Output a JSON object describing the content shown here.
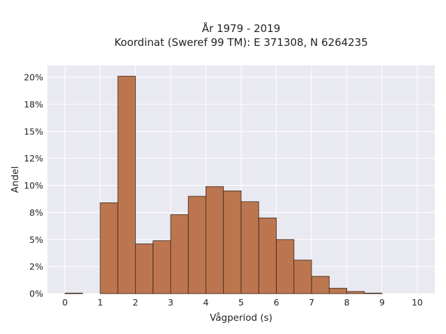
{
  "chart_data": {
    "type": "bar",
    "title": [
      "År 1979 - 2019",
      "Koordinat (Sweref 99 TM): E 371308, N 6264235"
    ],
    "xlabel": "Vågperiod (s)",
    "ylabel": "Andel",
    "bin_width": 0.5,
    "bin_starts": [
      0,
      0.5,
      1,
      1.5,
      2,
      2.5,
      3,
      3.5,
      4,
      4.5,
      5,
      5.5,
      6,
      6.5,
      7,
      7.5,
      8,
      8.5,
      9,
      9.5
    ],
    "values": [
      0.05,
      0,
      8.4,
      20.1,
      4.6,
      4.9,
      7.3,
      9.0,
      9.9,
      9.5,
      8.5,
      7.0,
      5.0,
      3.1,
      1.6,
      0.5,
      0.2,
      0.05,
      0,
      0
    ],
    "xticks": [
      0,
      1,
      2,
      3,
      4,
      5,
      6,
      7,
      8,
      9,
      10
    ],
    "yticks": [
      {
        "value": 0,
        "label": "0%"
      },
      {
        "value": 2.5,
        "label": "2%"
      },
      {
        "value": 5,
        "label": "5%"
      },
      {
        "value": 7.5,
        "label": "8%"
      },
      {
        "value": 10,
        "label": "10%"
      },
      {
        "value": 12.5,
        "label": "12%"
      },
      {
        "value": 15,
        "label": "15%"
      },
      {
        "value": 17.5,
        "label": "18%"
      },
      {
        "value": 20,
        "label": "20%"
      }
    ],
    "xlim": [
      -0.5,
      10.5
    ],
    "ylim": [
      0,
      21.1
    ],
    "grid": true,
    "bar_color": "#bb7650",
    "bar_edge_color": "#3a2415",
    "plot_background": "#e9e9f1",
    "grid_color": "#ffffff"
  }
}
